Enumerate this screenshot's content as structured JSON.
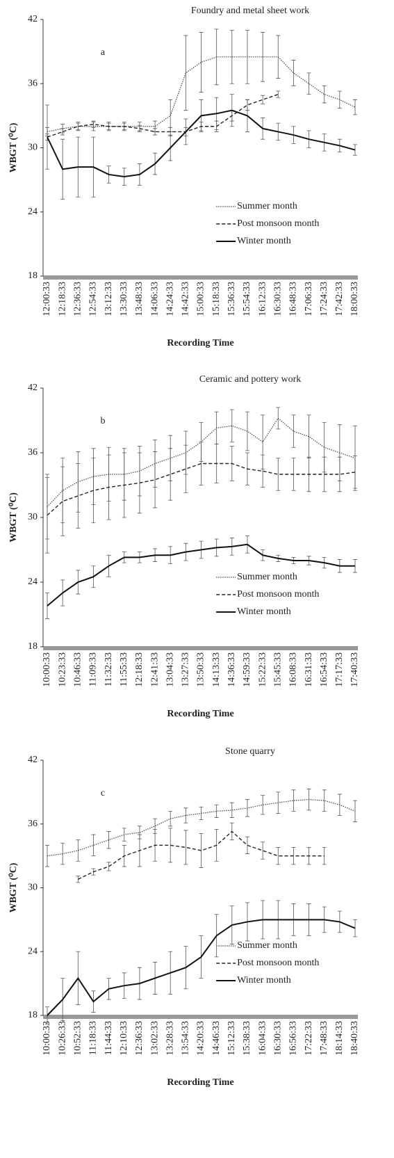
{
  "chart_data": [
    {
      "type": "line",
      "title": "Foundry and metal sheet work",
      "label": "a",
      "x_label": "Recording Time",
      "y_label": "WBGT (⁰C)",
      "categories": [
        "12:00:33",
        "12:18:33",
        "12:36:33",
        "12:54:33",
        "13:12:33",
        "13:30:33",
        "13:48:33",
        "14:06:33",
        "14:24:33",
        "14:42:33",
        "15:00:33",
        "15:18:33",
        "15:36:33",
        "15:54:33",
        "16:12:33",
        "16:30:33",
        "16:48:33",
        "17:06:33",
        "17:24:33",
        "17:42:33",
        "18:00:33"
      ],
      "ylim": [
        18,
        42
      ],
      "yticks": [
        18,
        24,
        30,
        36,
        42
      ],
      "legend": "lower center",
      "series": [
        {
          "name": "Summer month",
          "color": "#444",
          "dash": "dotted",
          "values": [
            31.5,
            31.8,
            32,
            32,
            32,
            32,
            32,
            32,
            33,
            37,
            38,
            38.5,
            38.5,
            38.5,
            38.5,
            38.5,
            37,
            36,
            35,
            34.5,
            33.8
          ],
          "errors": [
            0.4,
            0.4,
            0.4,
            0.4,
            0.4,
            0.4,
            0.4,
            0.5,
            1.5,
            3.5,
            2.8,
            2.6,
            2.5,
            2.5,
            2.3,
            2.0,
            1.2,
            1.0,
            0.8,
            0.8,
            0.7
          ]
        },
        {
          "name": "Post monsoon month",
          "color": "#222",
          "dash": "dashed",
          "values": [
            31,
            31.5,
            32,
            32.2,
            32,
            32,
            31.8,
            31.5,
            31.5,
            31.5,
            32,
            32,
            33,
            34,
            34.5,
            35,
            null,
            null,
            null,
            null,
            null
          ],
          "errors": [
            0.3,
            0.3,
            0.3,
            0.3,
            0.3,
            0.3,
            0.3,
            0.3,
            0.4,
            0.4,
            0.4,
            0.5,
            0.5,
            0.5,
            0.4,
            0.3,
            null,
            null,
            null,
            null,
            null
          ]
        },
        {
          "name": "Winter month",
          "color": "#111",
          "dash": "solid",
          "values": [
            31,
            28,
            28.2,
            28.2,
            27.5,
            27.3,
            27.5,
            28.5,
            30,
            31.5,
            33,
            33.2,
            33.5,
            33,
            31.8,
            31.5,
            31.2,
            30.8,
            30.5,
            30.2,
            29.8
          ],
          "errors": [
            3,
            2.8,
            2.8,
            2.8,
            0.8,
            0.8,
            1,
            1,
            1.2,
            1.2,
            1.5,
            1.5,
            1.5,
            1.5,
            1,
            0.8,
            0.8,
            0.8,
            0.8,
            0.6,
            0.5
          ]
        }
      ]
    },
    {
      "type": "line",
      "title": "Ceramic and pottery work",
      "label": "b",
      "x_label": "Recording Time",
      "y_label": "WBGT (⁰C)",
      "categories": [
        "10:00:33",
        "10:23:33",
        "10:46:33",
        "11:09:33",
        "11:32:33",
        "11:55:33",
        "12:18:33",
        "12:41:33",
        "13:04:33",
        "13:27:33",
        "13:50:33",
        "14:13:33",
        "14:36:33",
        "14:59:33",
        "15:22:33",
        "15:45:33",
        "16:08:33",
        "16:31:33",
        "16:54:33",
        "17:17:33",
        "17:40:33"
      ],
      "ylim": [
        18,
        42
      ],
      "yticks": [
        18,
        24,
        30,
        36,
        42
      ],
      "legend": "lower center",
      "series": [
        {
          "name": "Summer month",
          "color": "#444",
          "dash": "dotted",
          "values": [
            31,
            32.5,
            33.3,
            33.8,
            34,
            34,
            34.3,
            35,
            35.5,
            36,
            37,
            38.3,
            38.5,
            38,
            37,
            39.2,
            38,
            37.5,
            36.5,
            36,
            35.5
          ],
          "errors": [
            3,
            3,
            2.8,
            2.6,
            2.5,
            2.4,
            2.3,
            2.2,
            2.1,
            2.0,
            1.8,
            1.5,
            1.5,
            1.8,
            2.5,
            1.0,
            1.5,
            2.0,
            2.3,
            2.6,
            3.0
          ]
        },
        {
          "name": "Post monsoon month",
          "color": "#222",
          "dash": "dashed",
          "values": [
            30.2,
            31.5,
            32,
            32.5,
            32.8,
            33,
            33.2,
            33.5,
            34,
            34.5,
            35,
            35,
            35,
            34.5,
            34.3,
            34,
            34,
            34,
            34,
            34,
            34.2
          ],
          "errors": [
            3.5,
            3.2,
            3,
            3,
            3,
            3,
            2.8,
            2.6,
            2.4,
            2.2,
            2,
            1.8,
            1.6,
            1.5,
            1.5,
            1.5,
            1.5,
            1.6,
            1.6,
            1.6,
            1.5
          ]
        },
        {
          "name": "Winter month",
          "color": "#111",
          "dash": "solid",
          "values": [
            21.8,
            23,
            24,
            24.5,
            25.5,
            26.3,
            26.3,
            26.5,
            26.5,
            26.8,
            27,
            27.2,
            27.3,
            27.5,
            26.5,
            26.2,
            26,
            26,
            25.8,
            25.5,
            25.5
          ],
          "errors": [
            1.2,
            1.2,
            1.1,
            1,
            1,
            0.5,
            0.5,
            0.6,
            0.8,
            0.8,
            0.8,
            0.8,
            0.8,
            0.8,
            0.5,
            0.3,
            0.3,
            0.4,
            0.5,
            0.6,
            0.6
          ]
        }
      ]
    },
    {
      "type": "line",
      "title": "Stone quarry",
      "label": "c",
      "x_label": "Recording Time",
      "y_label": "WBGT (⁰C)",
      "categories": [
        "10:00:33",
        "10:26:33",
        "10:52:33",
        "11:18:33",
        "11:44:33",
        "12:10:33",
        "12:36:33",
        "13:02:33",
        "13:28:33",
        "13:54:33",
        "14:20:33",
        "14:46:33",
        "15:12:33",
        "15:38:33",
        "16:04:33",
        "16:30:33",
        "16:56:33",
        "17:22:33",
        "17:48:33",
        "18:14:33",
        "18:40:33"
      ],
      "ylim": [
        18,
        42
      ],
      "yticks": [
        18,
        24,
        30,
        36,
        42
      ],
      "legend": "lower center",
      "series": [
        {
          "name": "Summer month",
          "color": "#444",
          "dash": "dotted",
          "values": [
            33,
            33.2,
            33.5,
            34,
            34.5,
            35,
            35.2,
            35.8,
            36.5,
            36.8,
            37,
            37.2,
            37.3,
            37.5,
            37.8,
            38,
            38.2,
            38.3,
            38.2,
            37.8,
            37.2
          ],
          "errors": [
            1,
            1,
            1,
            1,
            0.8,
            0.6,
            0.6,
            0.7,
            0.7,
            0.7,
            0.6,
            0.6,
            0.7,
            0.8,
            0.9,
            1,
            1,
            1,
            1,
            1,
            1
          ]
        },
        {
          "name": "Post monsoon month",
          "color": "#222",
          "dash": "dashed",
          "values": [
            null,
            null,
            30.8,
            31.5,
            32,
            33,
            33.5,
            34,
            34,
            33.8,
            33.5,
            34,
            35.3,
            34,
            33.5,
            33,
            33,
            33,
            33,
            null,
            null
          ],
          "errors": [
            null,
            null,
            0.3,
            0.3,
            0.4,
            1,
            1.5,
            1.5,
            1.6,
            1.6,
            1.6,
            1.5,
            0.8,
            0.8,
            0.8,
            0.8,
            0.8,
            0.8,
            0.8,
            null,
            null
          ]
        },
        {
          "name": "Winter month",
          "color": "#111",
          "dash": "solid",
          "values": [
            18,
            19.5,
            21.5,
            19.3,
            20.5,
            20.8,
            21,
            21.5,
            22,
            22.5,
            23.5,
            25.5,
            26.5,
            26.8,
            27,
            27,
            27,
            27,
            27,
            26.8,
            26.2
          ],
          "errors": [
            0.8,
            2,
            2.5,
            1,
            1,
            1.2,
            1.5,
            1.5,
            2,
            2,
            2,
            2,
            1.8,
            1.8,
            1.8,
            1.8,
            1.5,
            1.5,
            1.2,
            1,
            0.8
          ]
        }
      ]
    }
  ]
}
